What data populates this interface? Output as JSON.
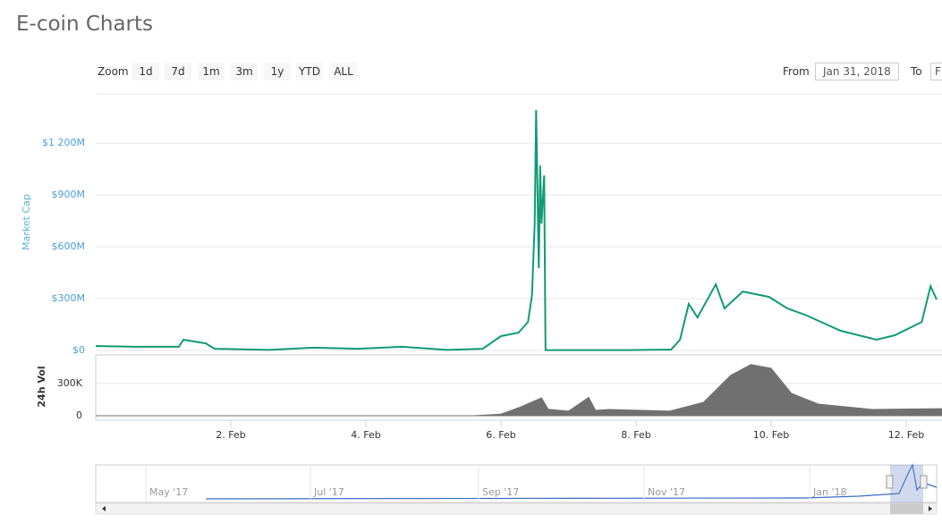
{
  "header": {
    "title": "E-coin Charts"
  },
  "toolbar": {
    "zoom_label": "Zoom",
    "zoom_buttons": [
      "1d",
      "7d",
      "1m",
      "3m",
      "1y",
      "YTD",
      "ALL"
    ],
    "from_label": "From",
    "from_value": "Jan 31, 2018",
    "to_label": "To",
    "to_value": "F"
  },
  "chart_data": [
    {
      "type": "line",
      "ylabel": "Market Cap",
      "color": "#119a74",
      "x": [
        0,
        0.57,
        1.23,
        1.3,
        1.63,
        1.76,
        2.56,
        3.22,
        3.88,
        4.54,
        5.2,
        5.73,
        6.0,
        6.26,
        6.4,
        6.46,
        6.5,
        6.52,
        6.56,
        6.58,
        6.6,
        6.64,
        6.66,
        7.19,
        7.85,
        8.52,
        8.65,
        8.78,
        8.91,
        9.18,
        9.31,
        9.58,
        9.97,
        10.24,
        10.5,
        11.03,
        11.56,
        11.83,
        12.23,
        12.36,
        12.45
      ],
      "values": [
        26,
        21,
        21,
        62,
        41,
        10,
        3,
        16,
        10,
        21,
        3,
        10,
        83,
        103,
        165,
        320,
        734,
        1391,
        476,
        1070,
        734,
        1013,
        2,
        2,
        2,
        5,
        62,
        269,
        191,
        383,
        243,
        341,
        310,
        243,
        207,
        114,
        62,
        88,
        165,
        372,
        295
      ],
      "xlim": [
        0,
        12.53
      ],
      "ylim": [
        0,
        1485
      ],
      "yticks": [
        {
          "value": 0,
          "label": "$0"
        },
        {
          "value": 300,
          "label": "$300M"
        },
        {
          "value": 600,
          "label": "$600M"
        },
        {
          "value": 900,
          "label": "$900M"
        },
        {
          "value": 1200,
          "label": "$1 200M"
        }
      ],
      "grid": true
    },
    {
      "type": "area",
      "ylabel": "24h Vol",
      "color": "#707070",
      "x": [
        0,
        5.6,
        6.0,
        6.3,
        6.6,
        6.7,
        7.0,
        7.3,
        7.4,
        7.6,
        8.5,
        9.0,
        9.4,
        9.7,
        10.0,
        10.3,
        10.7,
        11.5,
        12.53
      ],
      "values": [
        0,
        0,
        15000,
        83000,
        166000,
        60000,
        42000,
        170000,
        50000,
        58000,
        42000,
        125000,
        375000,
        475000,
        441000,
        208000,
        108000,
        58000,
        66000
      ],
      "xlim": [
        0,
        12.53
      ],
      "ylim": [
        0,
        540000
      ],
      "yticks": [
        0,
        {
          "value": 300000,
          "label": "300K"
        }
      ],
      "xticks": [
        {
          "value": 2,
          "label": "2. Feb"
        },
        {
          "value": 4,
          "label": "4. Feb"
        },
        {
          "value": 6,
          "label": "6. Feb"
        },
        {
          "value": 8,
          "label": "8. Feb"
        },
        {
          "value": 10,
          "label": "10. Feb"
        },
        {
          "value": 12,
          "label": "12. Feb"
        }
      ],
      "grid": true
    }
  ],
  "navigator": {
    "labels": [
      "May '17",
      "Jul '17",
      "Sep '17",
      "Nov '17",
      "Jan '18"
    ]
  }
}
